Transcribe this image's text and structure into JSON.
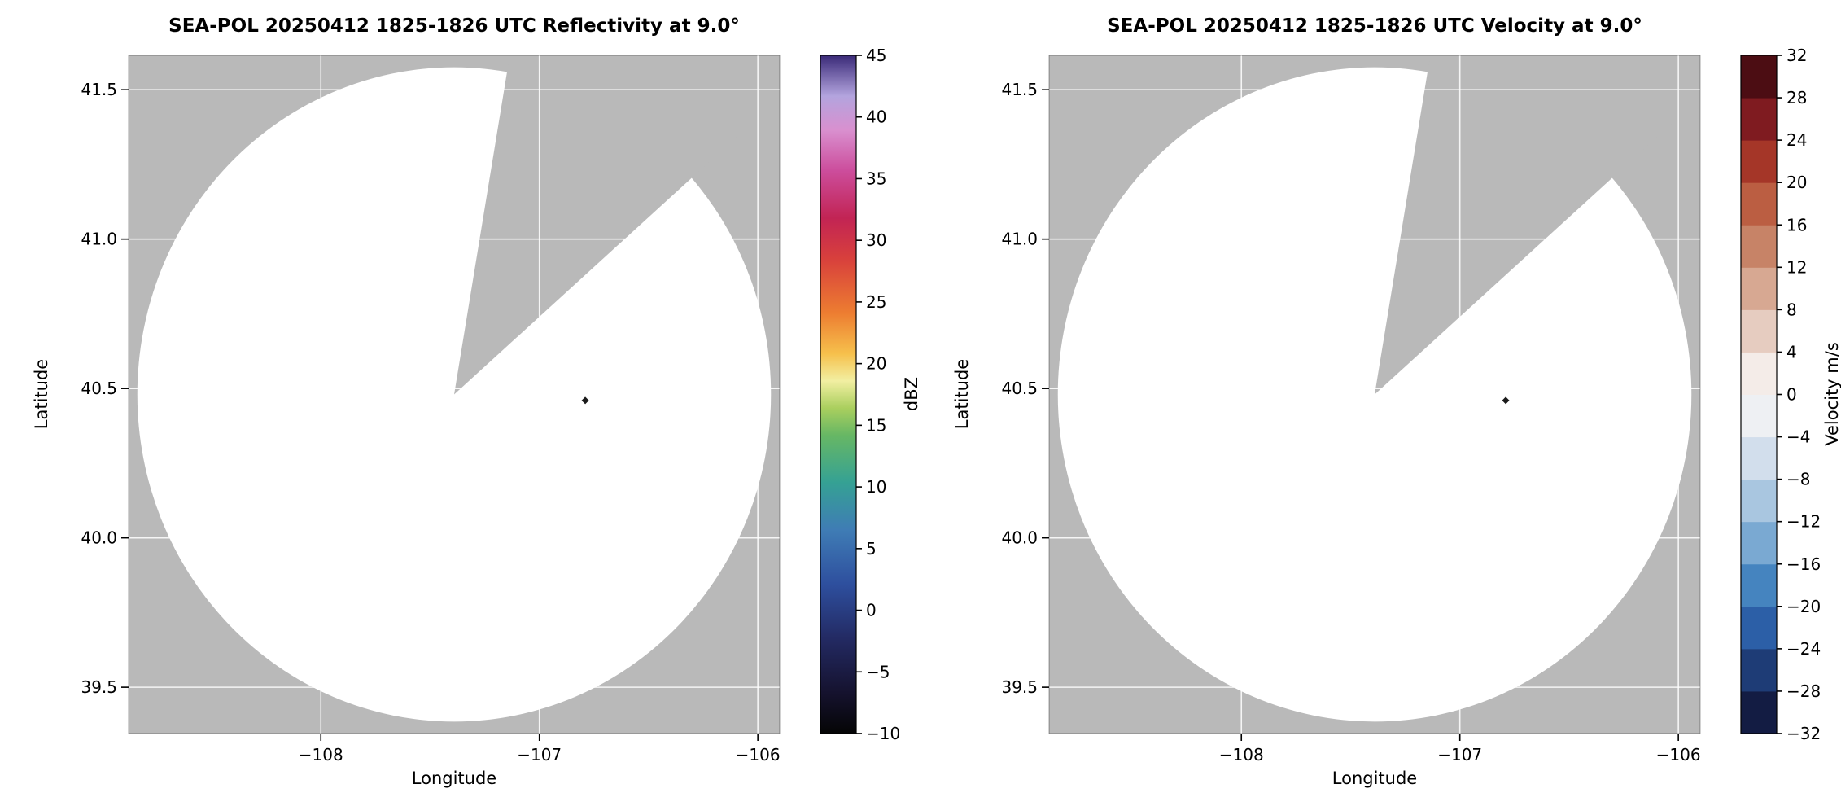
{
  "figure": {
    "background": "#ffffff",
    "text_color": "#000000"
  },
  "chart_data": [
    {
      "type": "radar_ppi",
      "field": "reflectivity",
      "title": "SEA-POL 20250412 1825-1826 UTC Reflectivity at 9.0°",
      "xlabel": "Longitude",
      "ylabel": "Latitude",
      "xlim": [
        -108.88,
        -105.9
      ],
      "ylim": [
        39.345,
        41.615
      ],
      "xticks": [
        -108,
        -107,
        -106
      ],
      "xtick_labels": [
        "−108",
        "−107",
        "−106"
      ],
      "yticks": [
        41.5,
        41.0,
        40.5,
        40.0,
        39.5
      ],
      "ytick_labels": [
        "41.5",
        "41.0",
        "40.5",
        "40.0",
        "39.5"
      ],
      "grid": true,
      "grid_color": "rgba(255,255,255,0.85)",
      "nodata_color": "#b9b9b9",
      "coverage_color": "#ffffff",
      "radar_center": {
        "lon": -107.39,
        "lat": 40.48
      },
      "coverage_radius_deg": {
        "lon": 1.45,
        "lat": 1.095
      },
      "missing_sector": {
        "from": {
          "lon": -107.15,
          "lat": 41.55
        },
        "to": {
          "lon": -106.34,
          "lat": 41.18
        }
      },
      "echo_point": {
        "lon": -106.79,
        "lat": 40.46,
        "color": "#1a1a1a"
      },
      "colorbar": {
        "label": "dBZ",
        "min": -10,
        "max": 45,
        "type": "gradient",
        "ticks": [
          45,
          40,
          35,
          30,
          25,
          20,
          15,
          10,
          5,
          0,
          -5,
          -10
        ],
        "tick_labels": [
          "45",
          "40",
          "35",
          "30",
          "25",
          "20",
          "15",
          "10",
          "5",
          "0",
          "−5",
          "−10"
        ],
        "stops": [
          {
            "at": 0.0,
            "color": "#050505"
          },
          {
            "at": 0.06,
            "color": "#15122e"
          },
          {
            "at": 0.14,
            "color": "#232a63"
          },
          {
            "at": 0.22,
            "color": "#2e4f9e"
          },
          {
            "at": 0.3,
            "color": "#3f7cb5"
          },
          {
            "at": 0.37,
            "color": "#35a194"
          },
          {
            "at": 0.44,
            "color": "#67b764"
          },
          {
            "at": 0.48,
            "color": "#aacf5e"
          },
          {
            "at": 0.52,
            "color": "#f2efa2"
          },
          {
            "at": 0.56,
            "color": "#f6c04c"
          },
          {
            "at": 0.62,
            "color": "#ed7d31"
          },
          {
            "at": 0.7,
            "color": "#d8403c"
          },
          {
            "at": 0.76,
            "color": "#c22454"
          },
          {
            "at": 0.83,
            "color": "#cc4d9c"
          },
          {
            "at": 0.89,
            "color": "#d990cf"
          },
          {
            "at": 0.94,
            "color": "#b3a4de"
          },
          {
            "at": 1.0,
            "color": "#3a2a78"
          }
        ]
      }
    },
    {
      "type": "radar_ppi",
      "field": "velocity",
      "title": "SEA-POL 20250412 1825-1826 UTC Velocity at 9.0°",
      "xlabel": "Longitude",
      "ylabel": "Latitude",
      "xlim": [
        -108.88,
        -105.9
      ],
      "ylim": [
        39.345,
        41.615
      ],
      "xticks": [
        -108,
        -107,
        -106
      ],
      "xtick_labels": [
        "−108",
        "−107",
        "−106"
      ],
      "yticks": [
        41.5,
        41.0,
        40.5,
        40.0,
        39.5
      ],
      "ytick_labels": [
        "41.5",
        "41.0",
        "40.5",
        "40.0",
        "39.5"
      ],
      "grid": true,
      "grid_color": "rgba(255,255,255,0.85)",
      "nodata_color": "#b9b9b9",
      "coverage_color": "#ffffff",
      "radar_center": {
        "lon": -107.39,
        "lat": 40.48
      },
      "coverage_radius_deg": {
        "lon": 1.45,
        "lat": 1.095
      },
      "missing_sector": {
        "from": {
          "lon": -107.15,
          "lat": 41.55
        },
        "to": {
          "lon": -106.34,
          "lat": 41.18
        }
      },
      "echo_point": {
        "lon": -106.79,
        "lat": 40.46,
        "color": "#1a1a1a"
      },
      "colorbar": {
        "label": "Velocity m/s",
        "min": -32,
        "max": 32,
        "type": "discrete",
        "ticks": [
          32,
          28,
          24,
          20,
          16,
          12,
          8,
          4,
          0,
          -4,
          -8,
          -12,
          -16,
          -20,
          -24,
          -28,
          -32
        ],
        "tick_labels": [
          "32",
          "28",
          "24",
          "20",
          "16",
          "12",
          "8",
          "4",
          "0",
          "−4",
          "−8",
          "−12",
          "−16",
          "−20",
          "−24",
          "−28",
          "−32"
        ],
        "colors_bottom_to_top": [
          "#131c43",
          "#1e3c76",
          "#2c5fa7",
          "#4584bf",
          "#7aa9d2",
          "#a9c6e0",
          "#d2deec",
          "#eef0f3",
          "#f4ece8",
          "#e6ccc0",
          "#d7a892",
          "#c78367",
          "#bb5e42",
          "#a53628",
          "#7f1b20",
          "#4c0d13"
        ]
      }
    }
  ]
}
